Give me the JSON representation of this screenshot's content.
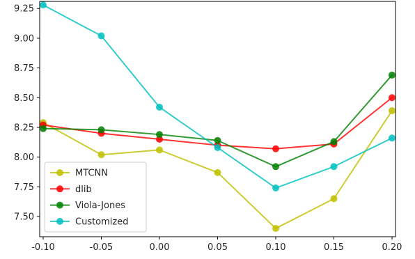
{
  "chart_data": {
    "type": "line",
    "title": "",
    "xlabel": "",
    "ylabel": "",
    "x": [
      -0.1,
      -0.05,
      0.0,
      0.05,
      0.1,
      0.15,
      0.2
    ],
    "xlim": [
      -0.103,
      0.203
    ],
    "ylim": [
      7.33,
      9.31
    ],
    "xticks": [
      "-0.10",
      "-0.05",
      "0.00",
      "0.05",
      "0.10",
      "0.15",
      "0.20"
    ],
    "yticks": [
      "7.50",
      "7.75",
      "8.00",
      "8.25",
      "8.50",
      "8.75",
      "9.00",
      "9.25"
    ],
    "grid": false,
    "legend_position": "lower-left",
    "series": [
      {
        "name": "MTCNN",
        "color": "#bfbf00",
        "values": [
          8.29,
          8.02,
          8.06,
          7.87,
          7.4,
          7.65,
          8.39
        ]
      },
      {
        "name": "dlib",
        "color": "#ff0000",
        "values": [
          8.27,
          8.2,
          8.15,
          8.1,
          8.07,
          8.11,
          8.5
        ]
      },
      {
        "name": "Viola-Jones",
        "color": "#008000",
        "values": [
          8.24,
          8.23,
          8.19,
          8.14,
          7.92,
          8.13,
          8.69
        ]
      },
      {
        "name": "Customized",
        "color": "#00bfbf",
        "values": [
          9.28,
          9.02,
          8.42,
          8.08,
          7.74,
          7.92,
          8.16
        ]
      }
    ]
  }
}
